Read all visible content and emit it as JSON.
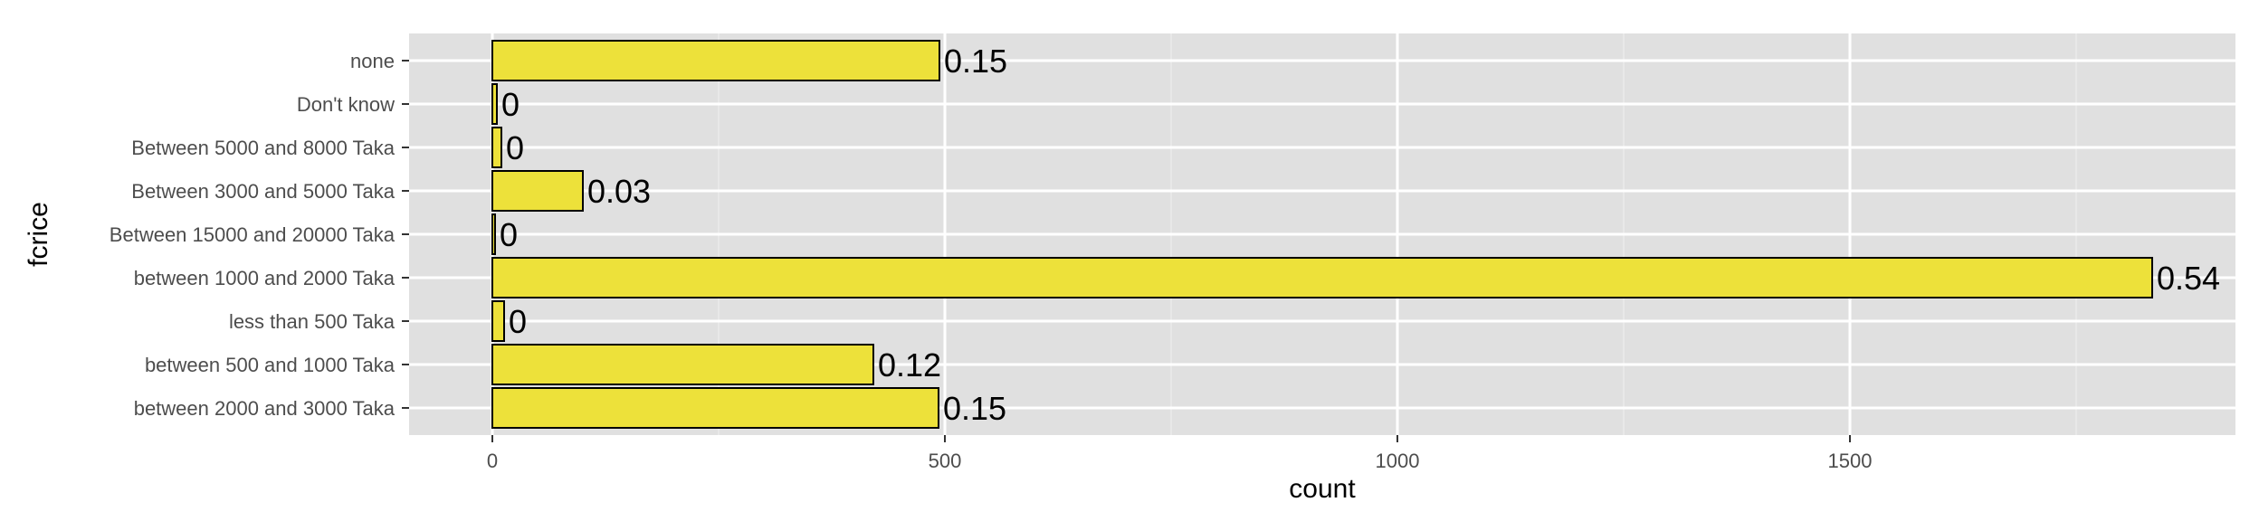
{
  "chart_data": {
    "type": "bar",
    "orientation": "horizontal",
    "title": "",
    "xlabel": "count",
    "ylabel": "fcrice",
    "categories": [
      "none",
      "Don't know",
      "Between 5000  and 8000 Taka",
      "Between 3000 and 5000 Taka",
      "Between 15000 and 20000 Taka",
      "between 1000 and 2000 Taka",
      "less than 500 Taka",
      "between 500 and 1000 Taka",
      "between 2000 and 3000 Taka"
    ],
    "values": [
      494,
      5,
      10,
      100,
      3,
      1834,
      13,
      421,
      493
    ],
    "labels": [
      "0.15",
      "0",
      "0",
      "0.03",
      "0",
      "0.54",
      "0",
      "0.12",
      "0.15"
    ],
    "x_ticks": [
      0,
      500,
      1000,
      1500
    ],
    "x_tick_labels": [
      "0",
      "500",
      "1000",
      "1500"
    ],
    "xlim": [
      -92,
      1926
    ],
    "grid": true,
    "legend": "none",
    "colors": {
      "bar_fill": "#EDE13A",
      "bar_stroke": "#000000",
      "panel": "#E0E0E0",
      "grid_major": "#FFFFFF",
      "grid_minor": "#EBEBEB",
      "tick_text": "#4D4D4D"
    }
  }
}
